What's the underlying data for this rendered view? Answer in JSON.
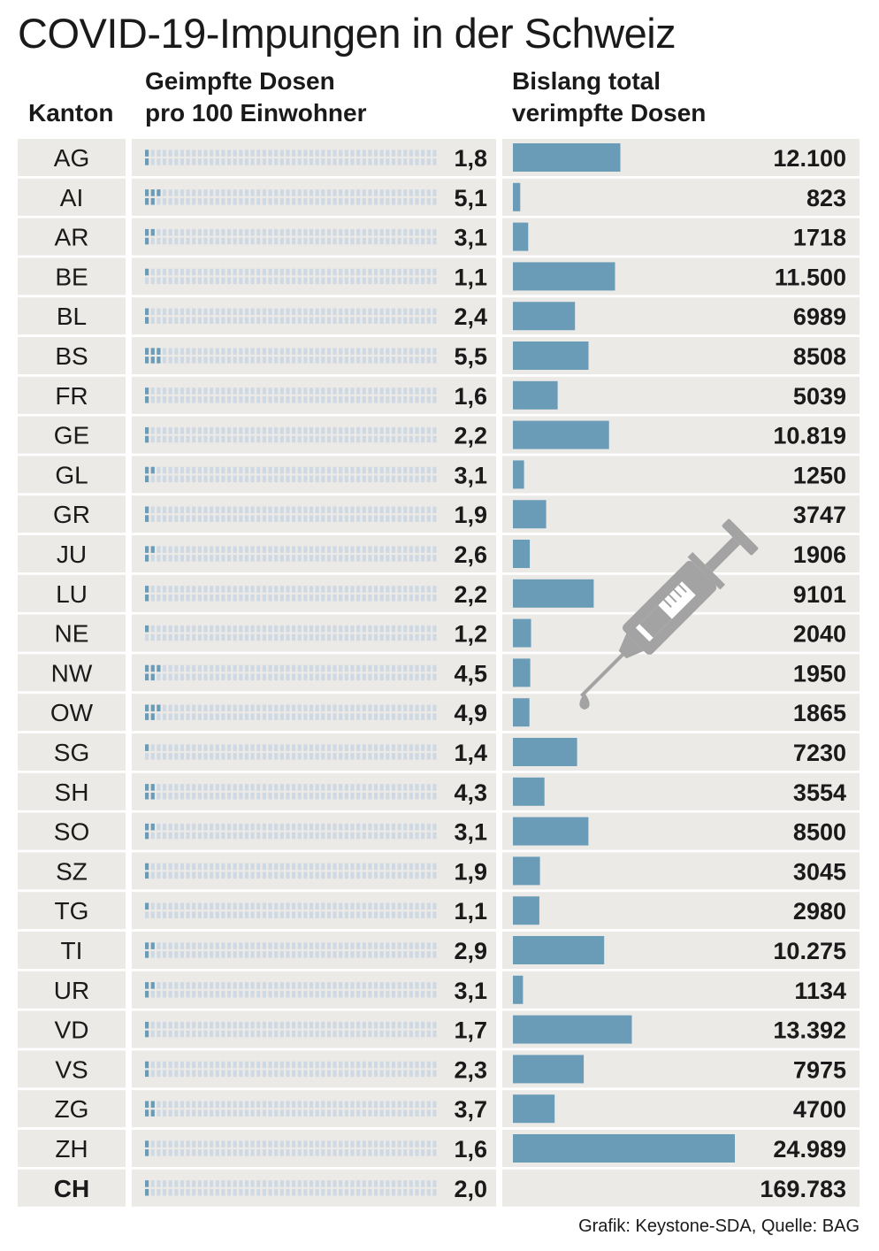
{
  "title": "COVID-19-Impungen in der Schweiz",
  "headers": {
    "kanton": "Kanton",
    "dosen_line1": "Geimpfte Dosen",
    "dosen_line2": "pro 100 Einwohner",
    "total_line1": "Bislang total",
    "total_line2": "verimpfte Dosen"
  },
  "credit": "Grafik: Keystone-SDA, Quelle: BAG",
  "colors": {
    "bar": "#6a9cb8",
    "waffle_empty": "#cfd9e4",
    "waffle_filled": "#6a9cb8",
    "row_bg": "#eceae7",
    "syringe": "#a3a3a3"
  },
  "icon": "syringe-icon",
  "chart_data": {
    "type": "table",
    "columns": [
      "Kanton",
      "Geimpfte Dosen pro 100 Einwohner",
      "Bislang total verimpfte Dosen"
    ],
    "waffle_max": 100,
    "bar_max": 24989,
    "rows": [
      {
        "kanton": "AG",
        "per100": 1.8,
        "per100_label": "1,8",
        "total": 12100,
        "total_label": "12.100"
      },
      {
        "kanton": "AI",
        "per100": 5.1,
        "per100_label": "5,1",
        "total": 823,
        "total_label": "823"
      },
      {
        "kanton": "AR",
        "per100": 3.1,
        "per100_label": "3,1",
        "total": 1718,
        "total_label": "1718"
      },
      {
        "kanton": "BE",
        "per100": 1.1,
        "per100_label": "1,1",
        "total": 11500,
        "total_label": "11.500"
      },
      {
        "kanton": "BL",
        "per100": 2.4,
        "per100_label": "2,4",
        "total": 6989,
        "total_label": "6989"
      },
      {
        "kanton": "BS",
        "per100": 5.5,
        "per100_label": "5,5",
        "total": 8508,
        "total_label": "8508"
      },
      {
        "kanton": "FR",
        "per100": 1.6,
        "per100_label": "1,6",
        "total": 5039,
        "total_label": "5039"
      },
      {
        "kanton": "GE",
        "per100": 2.2,
        "per100_label": "2,2",
        "total": 10819,
        "total_label": "10.819"
      },
      {
        "kanton": "GL",
        "per100": 3.1,
        "per100_label": "3,1",
        "total": 1250,
        "total_label": "1250"
      },
      {
        "kanton": "GR",
        "per100": 1.9,
        "per100_label": "1,9",
        "total": 3747,
        "total_label": "3747"
      },
      {
        "kanton": "JU",
        "per100": 2.6,
        "per100_label": "2,6",
        "total": 1906,
        "total_label": "1906"
      },
      {
        "kanton": "LU",
        "per100": 2.2,
        "per100_label": "2,2",
        "total": 9101,
        "total_label": "9101"
      },
      {
        "kanton": "NE",
        "per100": 1.2,
        "per100_label": "1,2",
        "total": 2040,
        "total_label": "2040"
      },
      {
        "kanton": "NW",
        "per100": 4.5,
        "per100_label": "4,5",
        "total": 1950,
        "total_label": "1950"
      },
      {
        "kanton": "OW",
        "per100": 4.9,
        "per100_label": "4,9",
        "total": 1865,
        "total_label": "1865"
      },
      {
        "kanton": "SG",
        "per100": 1.4,
        "per100_label": "1,4",
        "total": 7230,
        "total_label": "7230"
      },
      {
        "kanton": "SH",
        "per100": 4.3,
        "per100_label": "4,3",
        "total": 3554,
        "total_label": "3554"
      },
      {
        "kanton": "SO",
        "per100": 3.1,
        "per100_label": "3,1",
        "total": 8500,
        "total_label": "8500"
      },
      {
        "kanton": "SZ",
        "per100": 1.9,
        "per100_label": "1,9",
        "total": 3045,
        "total_label": "3045"
      },
      {
        "kanton": "TG",
        "per100": 1.1,
        "per100_label": "1,1",
        "total": 2980,
        "total_label": "2980"
      },
      {
        "kanton": "TI",
        "per100": 2.9,
        "per100_label": "2,9",
        "total": 10275,
        "total_label": "10.275"
      },
      {
        "kanton": "UR",
        "per100": 3.1,
        "per100_label": "3,1",
        "total": 1134,
        "total_label": "1134"
      },
      {
        "kanton": "VD",
        "per100": 1.7,
        "per100_label": "1,7",
        "total": 13392,
        "total_label": "13.392"
      },
      {
        "kanton": "VS",
        "per100": 2.3,
        "per100_label": "2,3",
        "total": 7975,
        "total_label": "7975"
      },
      {
        "kanton": "ZG",
        "per100": 3.7,
        "per100_label": "3,7",
        "total": 4700,
        "total_label": "4700"
      },
      {
        "kanton": "ZH",
        "per100": 1.6,
        "per100_label": "1,6",
        "total": 24989,
        "total_label": "24.989"
      },
      {
        "kanton": "CH",
        "per100": 2.0,
        "per100_label": "2,0",
        "total": 169783,
        "total_label": "169.783",
        "is_total": true
      }
    ]
  }
}
